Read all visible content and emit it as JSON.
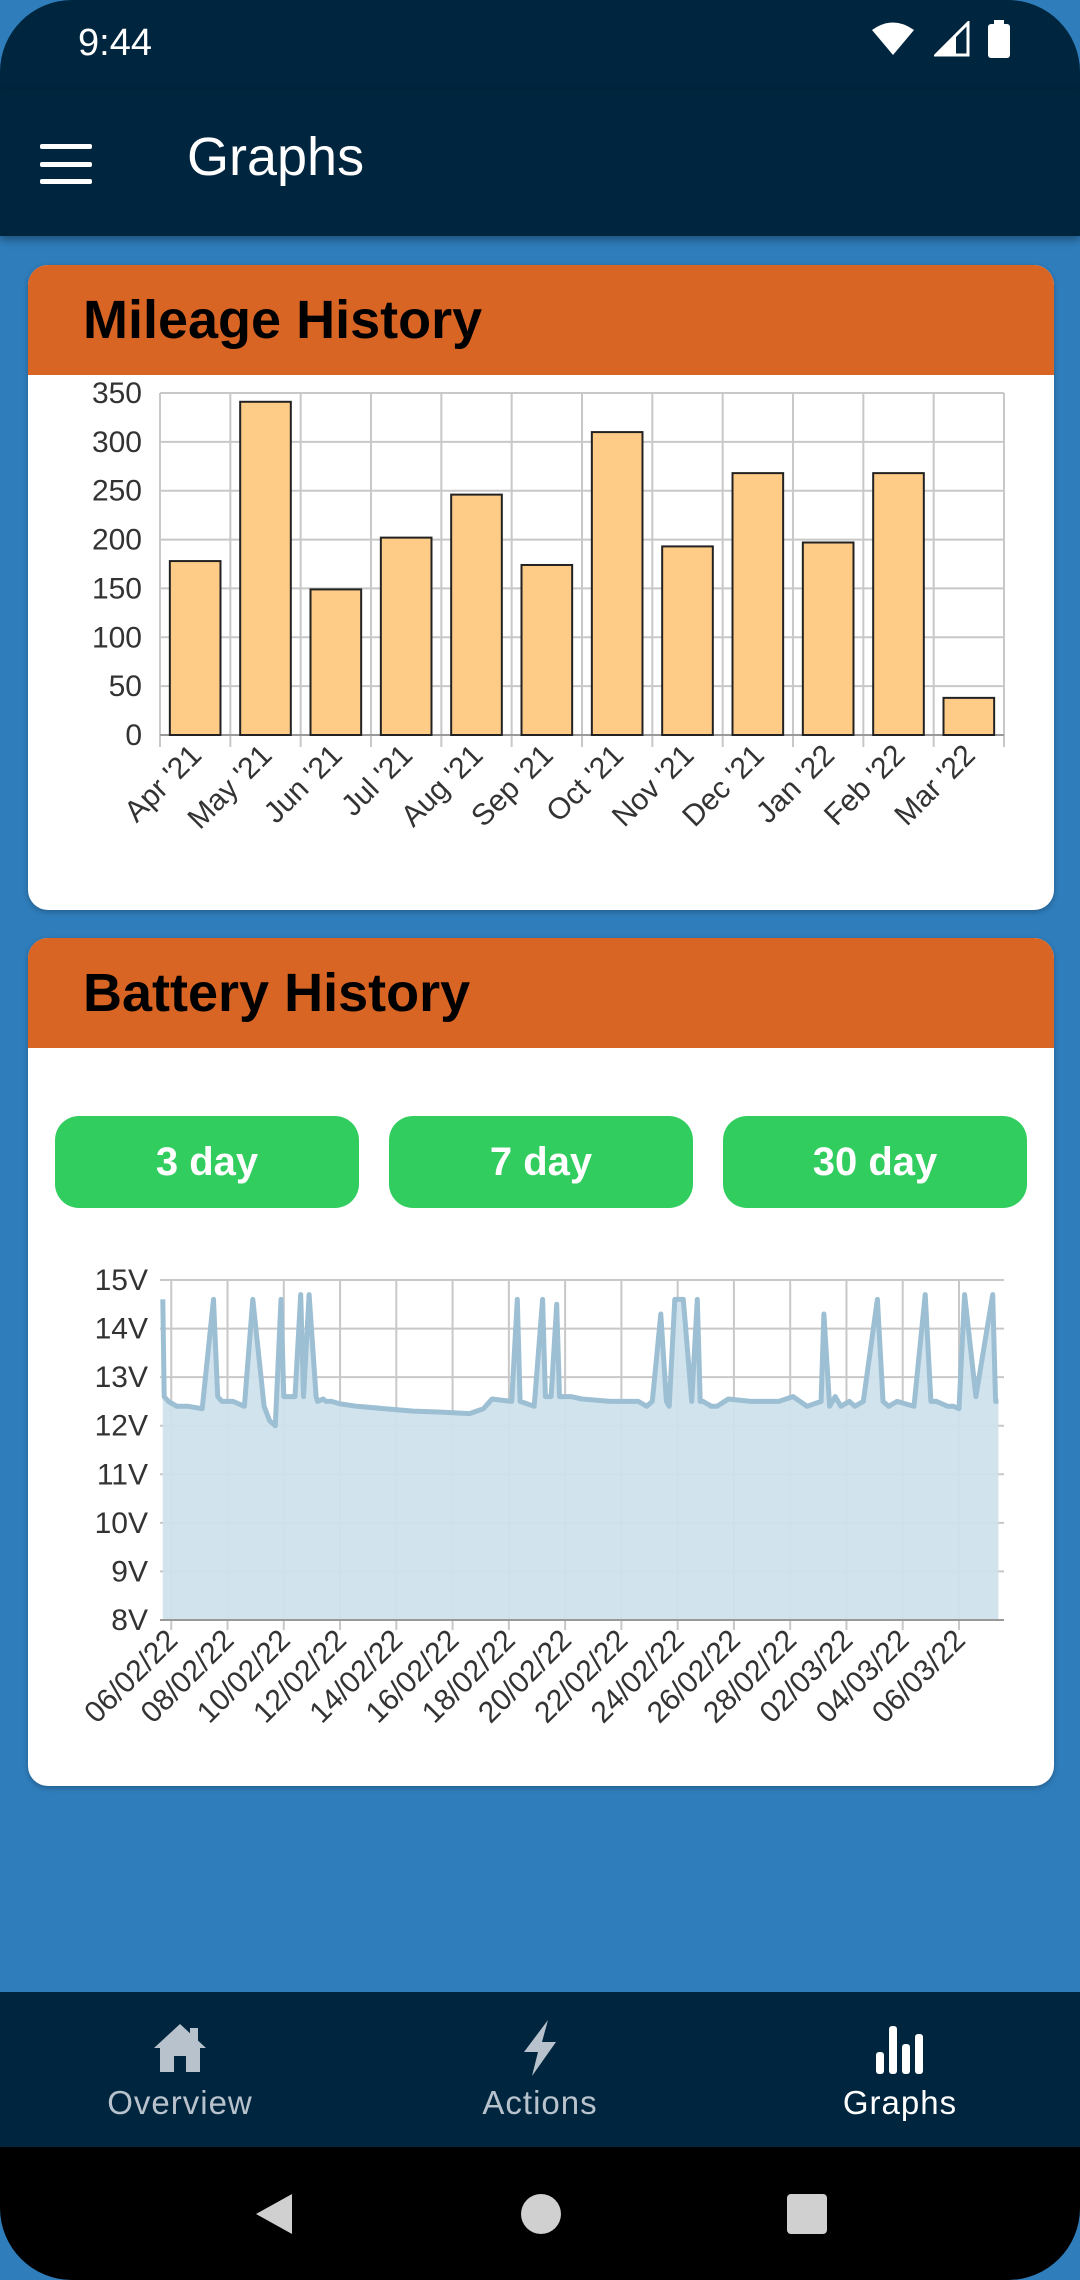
{
  "status_bar": {
    "time": "9:44"
  },
  "app_bar": {
    "title": "Graphs"
  },
  "mileage_card": {
    "title": "Mileage History"
  },
  "battery_card": {
    "title": "Battery History",
    "buttons": [
      "3 day",
      "7 day",
      "30 day"
    ]
  },
  "bottom_nav": {
    "items": [
      {
        "label": "Overview",
        "icon": "home-icon"
      },
      {
        "label": "Actions",
        "icon": "lightning-icon"
      },
      {
        "label": "Graphs",
        "icon": "bar-chart-icon",
        "active": true
      }
    ]
  },
  "colors": {
    "header": "#00253e",
    "accent": "#d96525",
    "button": "#32cd5f",
    "bar_fill": "#ffcc88",
    "battery_line": "#9dbfd3",
    "battery_fill": "#cfe1ec"
  },
  "chart_data": [
    {
      "type": "bar",
      "title": "Mileage History",
      "categories": [
        "Apr '21",
        "May '21",
        "Jun '21",
        "Jul '21",
        "Aug '21",
        "Sep '21",
        "Oct '21",
        "Nov '21",
        "Dec '21",
        "Jan '22",
        "Feb '22",
        "Mar '22"
      ],
      "values": [
        178,
        341,
        149,
        202,
        246,
        174,
        310,
        193,
        268,
        197,
        268,
        38
      ],
      "ylim": [
        0,
        350
      ],
      "yticks": [
        0,
        50,
        100,
        150,
        200,
        250,
        300,
        350
      ],
      "grid": true
    },
    {
      "type": "area",
      "title": "Battery History",
      "x_tick_labels": [
        "06/02/22",
        "08/02/22",
        "10/02/22",
        "12/02/22",
        "14/02/22",
        "16/02/22",
        "18/02/22",
        "20/02/22",
        "22/02/22",
        "24/02/22",
        "26/02/22",
        "28/02/22",
        "02/03/22",
        "04/03/22",
        "06/03/22"
      ],
      "y_tick_labels": [
        "8V",
        "9V",
        "10V",
        "11V",
        "12V",
        "13V",
        "14V",
        "15V"
      ],
      "ylim": [
        8,
        15
      ],
      "xlim_days": [
        0,
        30
      ],
      "grid": true,
      "series": [
        {
          "x": [
            0.1,
            0.15,
            0.3,
            0.6,
            1.0,
            1.5,
            1.9,
            2.05,
            2.2,
            2.6,
            3.0,
            3.3,
            3.7,
            3.9,
            4.1,
            4.3,
            4.4,
            4.8,
            5.0,
            5.1,
            5.3,
            5.55,
            5.6,
            5.8,
            5.9,
            6.1,
            6.4,
            7.0,
            8.0,
            9.0,
            10.0,
            11.0,
            11.5,
            11.8,
            12.5,
            12.7,
            12.8,
            13.3,
            13.6,
            13.7,
            13.9,
            14.1,
            14.2,
            14.6,
            15.0,
            16.0,
            17.0,
            17.3,
            17.5,
            17.8,
            18.0,
            18.1,
            18.3,
            18.6,
            18.9,
            19.1,
            19.2,
            19.3,
            19.6,
            19.8,
            20.2,
            21.0,
            22.0,
            22.5,
            23.0,
            23.5,
            23.6,
            23.8,
            24.0,
            24.2,
            24.5,
            24.7,
            25.0,
            25.5,
            25.7,
            25.9,
            26.2,
            26.5,
            26.8,
            27.2,
            27.4,
            27.6,
            27.8,
            28.0,
            28.2,
            28.4,
            28.6,
            29.0,
            29.6,
            29.7,
            29.8
          ],
          "values": [
            14.6,
            12.6,
            12.5,
            12.4,
            12.4,
            12.35,
            14.6,
            12.6,
            12.5,
            12.5,
            12.4,
            14.6,
            12.4,
            12.1,
            12.0,
            14.6,
            12.6,
            12.6,
            14.7,
            12.6,
            14.7,
            12.6,
            12.5,
            12.55,
            12.5,
            12.5,
            12.45,
            12.4,
            12.35,
            12.3,
            12.28,
            12.25,
            12.35,
            12.55,
            12.5,
            14.6,
            12.5,
            12.4,
            14.6,
            12.6,
            12.6,
            14.5,
            12.6,
            12.6,
            12.55,
            12.5,
            12.5,
            12.4,
            12.5,
            14.3,
            12.5,
            12.4,
            14.6,
            14.6,
            12.5,
            14.6,
            12.5,
            12.5,
            12.4,
            12.4,
            12.55,
            12.5,
            12.5,
            12.6,
            12.4,
            12.5,
            14.3,
            12.4,
            12.6,
            12.4,
            12.5,
            12.4,
            12.5,
            14.6,
            12.5,
            12.4,
            12.5,
            12.45,
            12.4,
            14.7,
            12.5,
            12.5,
            12.45,
            12.4,
            12.4,
            12.35,
            14.7,
            12.6,
            14.7,
            12.5,
            12.5
          ],
          "color": "#9dbfd3"
        }
      ]
    }
  ]
}
